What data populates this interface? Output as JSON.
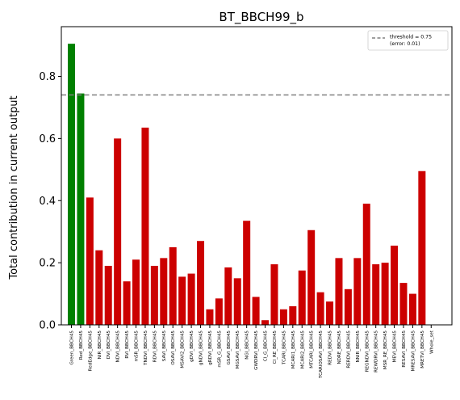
{
  "chart_data": {
    "type": "bar",
    "title": "BT_BBCH99_b",
    "xlabel": "",
    "ylabel": "Total contribution in current output",
    "ylim": [
      0,
      0.96
    ],
    "yticks": [
      "0.0",
      "0.2",
      "0.4",
      "0.6",
      "0.8"
    ],
    "yticks_values": [
      0.0,
      0.2,
      0.4,
      0.6,
      0.8
    ],
    "categories": [
      "Green_BBCH45",
      "Red_BBCH45",
      "RedEdge_BBCH45",
      "NIR_BBCH45",
      "DVI_BBCH45",
      "NDVI_BBCH45",
      "RVI_BBCH45",
      "mSR_BBCH45",
      "TNDVI_BBCH45",
      "RDVI_BBCH45",
      "SAVI_BBCH45",
      "OSAVI_BBCH45",
      "MSAVI2_BBCH45",
      "gDVI_BBCH45",
      "gNDVI_BBCH45",
      "gRDVI_BBCH45",
      "mSR_G_BBCH45",
      "GSAVI_BBCH45",
      "MGSAVI_BBCH45",
      "NGI_BBCH45",
      "GWDRVI_BBCH45",
      "CI_G_BBCH45",
      "CI_RE_BBCH45",
      "TCARI_BBCH45",
      "MCARI1_BBCH45",
      "MCARI2_BBCH45",
      "MTCARI_BBCH45",
      "TCARIOSAVI_BBCH45",
      "REDVI_BBCH45",
      "NDRE_BBCH45",
      "RERDVI_BBCH45",
      "NNIR_BBCH45",
      "REGNDVI_BBCH45",
      "REWDRVI_BBCH45",
      "MSR_RE_BBCH45",
      "MEVI_BBCH45",
      "RESAVI_BBCH45",
      "MRESAVI_BBCH45",
      "MRETVI_BBCH45",
      "Whole_set"
    ],
    "values": [
      0.905,
      0.745,
      0.41,
      0.24,
      0.19,
      0.6,
      0.14,
      0.21,
      0.635,
      0.19,
      0.215,
      0.25,
      0.155,
      0.165,
      0.27,
      0.05,
      0.085,
      0.185,
      0.15,
      0.335,
      0.09,
      0.015,
      0.195,
      0.05,
      0.06,
      0.175,
      0.305,
      0.105,
      0.075,
      0.215,
      0.115,
      0.215,
      0.39,
      0.195,
      0.2,
      0.255,
      0.135,
      0.1,
      0.495,
      0.0
    ],
    "colors": [
      "#008000",
      "#008000",
      "#cc0000",
      "#cc0000",
      "#cc0000",
      "#cc0000",
      "#cc0000",
      "#cc0000",
      "#cc0000",
      "#cc0000",
      "#cc0000",
      "#cc0000",
      "#cc0000",
      "#cc0000",
      "#cc0000",
      "#cc0000",
      "#cc0000",
      "#cc0000",
      "#cc0000",
      "#cc0000",
      "#cc0000",
      "#cc0000",
      "#cc0000",
      "#cc0000",
      "#cc0000",
      "#cc0000",
      "#cc0000",
      "#cc0000",
      "#cc0000",
      "#cc0000",
      "#cc0000",
      "#cc0000",
      "#cc0000",
      "#cc0000",
      "#cc0000",
      "#cc0000",
      "#cc0000",
      "#cc0000",
      "#cc0000",
      "#cc0000"
    ],
    "threshold": {
      "value": 0.74,
      "color": "#808080",
      "label_line1": "threshold = 0.75",
      "label_line2": "(error: 0.01)"
    },
    "legend_placement": "top-right",
    "grid": false
  }
}
